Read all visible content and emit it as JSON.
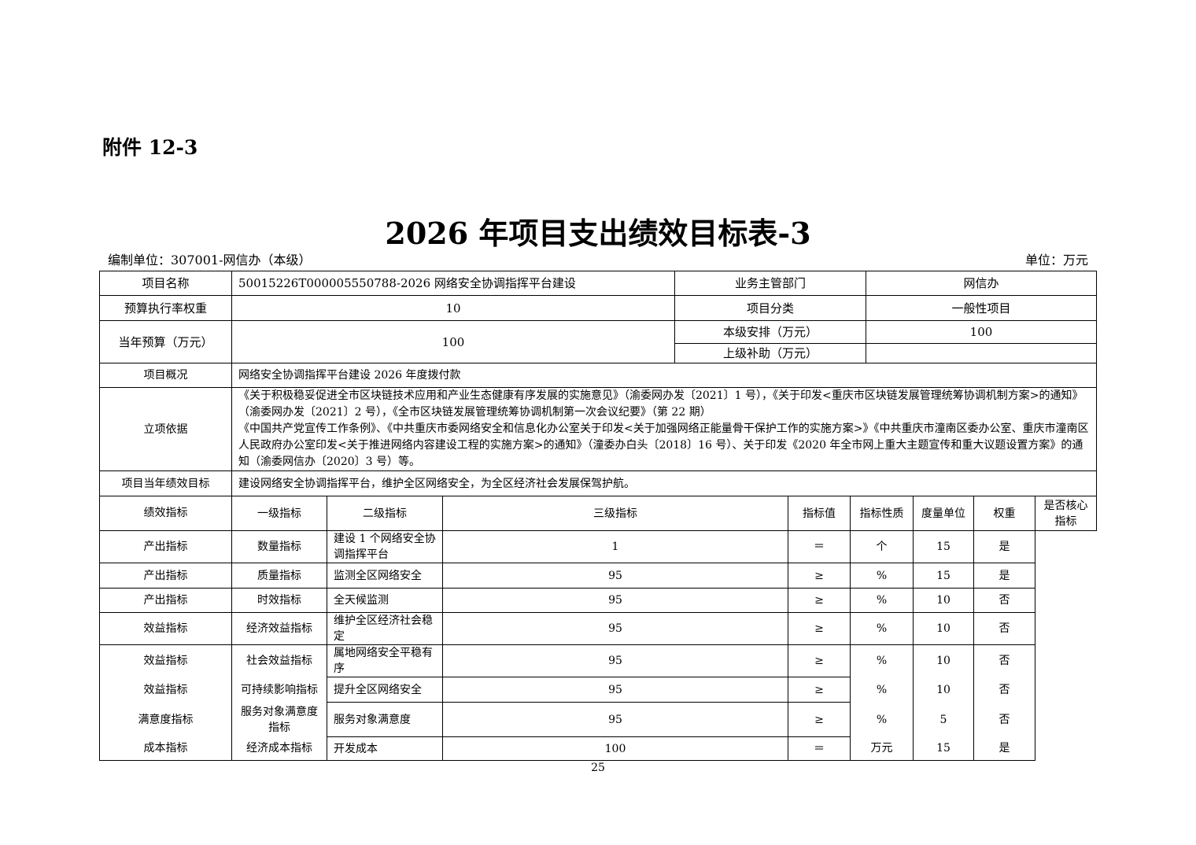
{
  "attachment": "附件 12-3",
  "title": "2026 年项目支出绩效目标表-3",
  "prepared_by": "编制单位：307001-网信办（本级）",
  "unit": "单位：万元",
  "info": {
    "project_name_label": "项目名称",
    "project_name": "50015226T000005550788-2026 网络安全协调指挥平台建设",
    "dept_label": "业务主管部门",
    "dept": "网信办",
    "weight_label": "预算执行率权重",
    "weight": "10",
    "category_label": "项目分类",
    "category": "一般性项目",
    "budget_label": "当年预算（万元）",
    "budget": "100",
    "local_label": "本级安排（万元）",
    "local": "100",
    "upper_label": "上级补助（万元）",
    "upper": "",
    "overview_label": "项目概况",
    "overview": "网络安全协调指挥平台建设 2026 年度拨付款",
    "basis_label": "立项依据",
    "basis_1": "《关于积极稳妥促进全市区块链技术应用和产业生态健康有序发展的实施意见》（渝委网办发〔2021〕1 号），《关于印发<重庆市区块链发展管理统筹协调机制方案>的通知》（渝委网办发〔2021〕2 号），《全市区块链发展管理统筹协调机制第一次会议纪要》（第 22 期）",
    "basis_2": "《中国共产党宣传工作条例》、《中共重庆市委网络安全和信息化办公室关于印发<关于加强网络正能量骨干保护工作的实施方案>》《中共重庆市潼南区委办公室、重庆市潼南区人民政府办公室印发<关于推进网络内容建设工程的实施方案>的通知》（潼委办白头〔2018〕16 号）、关于印发《2020 年全市网上重大主题宣传和重大议题设置方案》的通知（渝委网信办〔2020〕3 号）等。",
    "goal_label": "项目当年绩效目标",
    "goal": "建设网络安全协调指挥平台，维护全区网络安全，为全区经济社会发展保驾护航。"
  },
  "indicators": {
    "label": "绩效指标",
    "headers": [
      "一级指标",
      "二级指标",
      "三级指标",
      "指标值",
      "指标性质",
      "度量单位",
      "权重",
      "是否核心指标"
    ],
    "rows": [
      [
        "产出指标",
        "数量指标",
        "建设 1 个网络安全协调指挥平台",
        "1",
        "＝",
        "个",
        "15",
        "是"
      ],
      [
        "产出指标",
        "质量指标",
        "监测全区网络安全",
        "95",
        "≥",
        "%",
        "15",
        "是"
      ],
      [
        "产出指标",
        "时效指标",
        "全天候监测",
        "95",
        "≥",
        "%",
        "10",
        "否"
      ],
      [
        "效益指标",
        "经济效益指标",
        "维护全区经济社会稳定",
        "95",
        "≥",
        "%",
        "10",
        "否"
      ],
      [
        "效益指标",
        "社会效益指标",
        "属地网络安全平稳有序",
        "95",
        "≥",
        "%",
        "10",
        "否"
      ],
      [
        "效益指标",
        "可持续影响指标",
        "提升全区网络安全",
        "95",
        "≥",
        "%",
        "10",
        "否"
      ],
      [
        "满意度指标",
        "服务对象满意度指标",
        "服务对象满意度",
        "95",
        "≥",
        "%",
        "5",
        "否"
      ],
      [
        "成本指标",
        "经济成本指标",
        "开发成本",
        "100",
        "＝",
        "万元",
        "15",
        "是"
      ]
    ]
  },
  "page_number": "25"
}
